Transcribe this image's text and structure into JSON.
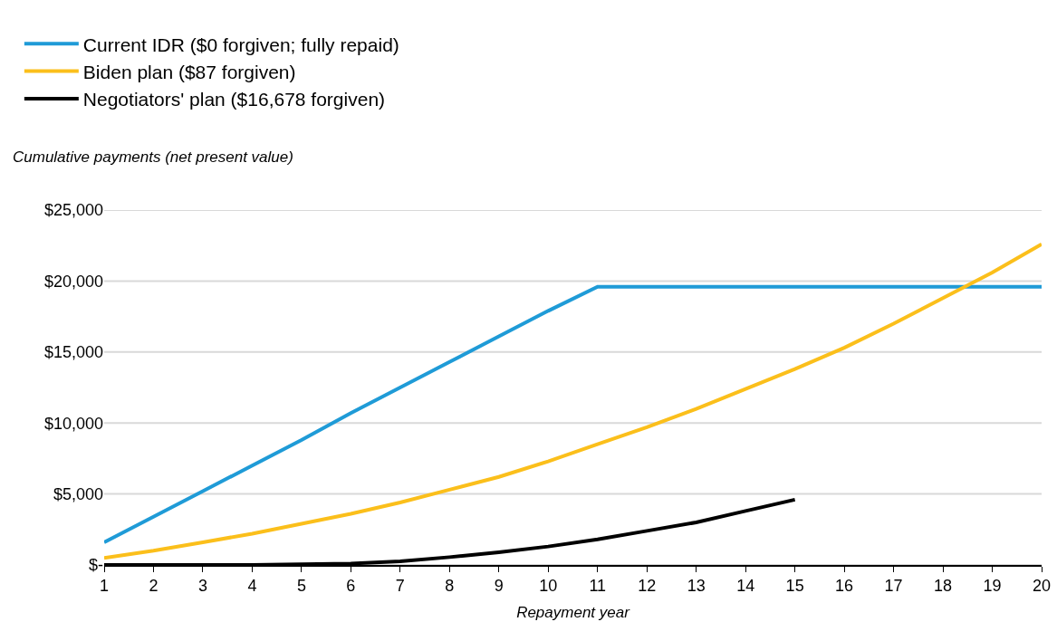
{
  "chart_data": {
    "type": "line",
    "xlabel": "Repayment year",
    "ylabel": "Cumulative payments (net present value)",
    "x": [
      1,
      2,
      3,
      4,
      5,
      6,
      7,
      8,
      9,
      10,
      11,
      12,
      13,
      14,
      15,
      16,
      17,
      18,
      19,
      20
    ],
    "series": [
      {
        "name": "Current IDR ($0 forgiven; fully repaid)",
        "color": "#1f9bd7",
        "values": [
          1600,
          3400,
          5200,
          7000,
          8800,
          10700,
          12500,
          14300,
          16100,
          17900,
          19600,
          19600,
          19600,
          19600,
          19600,
          19600,
          19600,
          19600,
          19600,
          19600
        ]
      },
      {
        "name": "Biden plan ($87 forgiven)",
        "color": "#fbbf1b",
        "values": [
          500,
          1000,
          1600,
          2200,
          2900,
          3600,
          4400,
          5300,
          6200,
          7300,
          8500,
          9700,
          11000,
          12400,
          13800,
          15300,
          17000,
          18800,
          20600,
          22600
        ]
      },
      {
        "name": "Negotiators' plan ($16,678 forgiven)",
        "color": "#000000",
        "values": [
          0,
          0,
          0,
          0,
          50,
          100,
          250,
          550,
          900,
          1300,
          1800,
          2400,
          3000,
          3800,
          4600,
          null,
          null,
          null,
          null,
          null
        ]
      }
    ],
    "xlim": [
      1,
      20
    ],
    "xticks": [
      1,
      2,
      3,
      4,
      5,
      6,
      7,
      8,
      9,
      10,
      11,
      12,
      13,
      14,
      15,
      16,
      17,
      18,
      19,
      20
    ],
    "ylim": [
      0,
      25000
    ],
    "yticks": [
      {
        "value": 0,
        "label": "$-"
      },
      {
        "value": 5000,
        "label": "$5,000"
      },
      {
        "value": 10000,
        "label": "$10,000"
      },
      {
        "value": 15000,
        "label": "$15,000"
      },
      {
        "value": 20000,
        "label": "$20,000"
      },
      {
        "value": 25000,
        "label": "$25,000"
      }
    ],
    "grid": "y",
    "legend": "top left",
    "marker": "none",
    "line_style": "solid"
  }
}
